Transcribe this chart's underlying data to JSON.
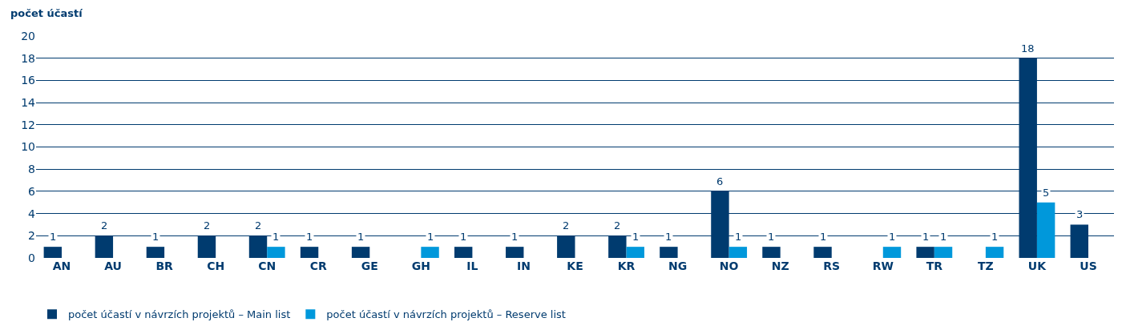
{
  "chart_data": {
    "type": "bar",
    "ylabel": "počet účastí",
    "categories": [
      "AN",
      "AU",
      "BR",
      "CH",
      "CN",
      "CR",
      "GE",
      "GH",
      "IL",
      "IN",
      "KE",
      "KR",
      "NG",
      "NO",
      "NZ",
      "RS",
      "RW",
      "TR",
      "TZ",
      "UK",
      "US"
    ],
    "series": [
      {
        "name": "počet účastí v návrzích projektů – Main list",
        "color": "#003b6f",
        "values": [
          1,
          2,
          1,
          2,
          2,
          1,
          1,
          null,
          1,
          1,
          2,
          2,
          1,
          6,
          1,
          1,
          null,
          1,
          null,
          18,
          3
        ]
      },
      {
        "name": "počet účastí v návrzích projektů – Reserve list",
        "color": "#0098db",
        "values": [
          null,
          null,
          null,
          null,
          1,
          null,
          null,
          1,
          null,
          null,
          null,
          1,
          null,
          1,
          null,
          null,
          1,
          1,
          1,
          5,
          null
        ]
      }
    ],
    "ylim": [
      0,
      20
    ],
    "yticks": [
      0,
      2,
      4,
      6,
      8,
      10,
      12,
      14,
      16,
      18,
      20
    ],
    "grid": "y",
    "data_labels": true,
    "legend": "bottom left"
  }
}
